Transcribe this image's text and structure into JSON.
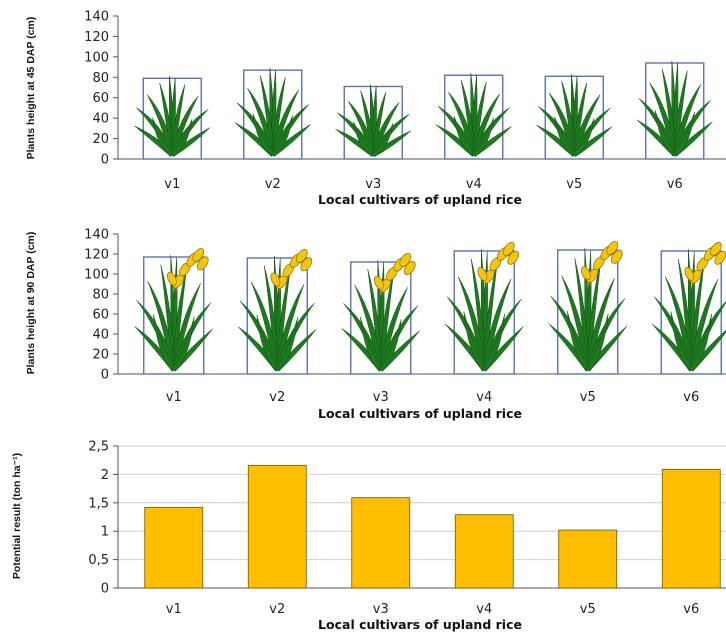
{
  "chart_data": [
    {
      "type": "bar",
      "categories": [
        "v1",
        "v2",
        "v3",
        "v4",
        "v5",
        "v6"
      ],
      "values": [
        79,
        87,
        71,
        82,
        81,
        94
      ],
      "ylabel": "Plants height at 45 DAP (cm)",
      "xlabel": "Local cultivars of upland rice",
      "ylim": [
        0,
        140
      ],
      "yticks": [
        "0",
        "20",
        "40",
        "60",
        "80",
        "100",
        "120",
        "140"
      ],
      "bar_style": "outlined box with rice plant illustration",
      "outline_color": "#5b74b0",
      "plant_color": "#1f7a1f"
    },
    {
      "type": "bar",
      "categories": [
        "v1",
        "v2",
        "v3",
        "v4",
        "v5",
        "v6"
      ],
      "values": [
        117,
        116,
        112,
        123,
        124,
        123
      ],
      "ylabel": "Plants height at 90 DAP (cm)",
      "xlabel": "Local cultivars of upland rice",
      "ylim": [
        0,
        140
      ],
      "yticks": [
        "0",
        "20",
        "40",
        "60",
        "80",
        "100",
        "120",
        "140"
      ],
      "bar_style": "outlined box with flowering rice plant illustration",
      "outline_color": "#5b74b0",
      "plant_color": "#1f7a1f",
      "panicle_color": "#f2c413"
    },
    {
      "type": "bar",
      "categories": [
        "v1",
        "v2",
        "v3",
        "v4",
        "v5",
        "v6"
      ],
      "values": [
        1.42,
        2.16,
        1.59,
        1.29,
        1.02,
        2.09
      ],
      "ylabel": "Potential result (ton ha⁻¹)",
      "xlabel": "Local cultivars of upland rice",
      "ylim": [
        0,
        2.5
      ],
      "yticks": [
        "0",
        "0,5",
        "1",
        "1,5",
        "2",
        "2,5"
      ],
      "bar_color": "#ffbf00",
      "gridlines": true
    }
  ]
}
